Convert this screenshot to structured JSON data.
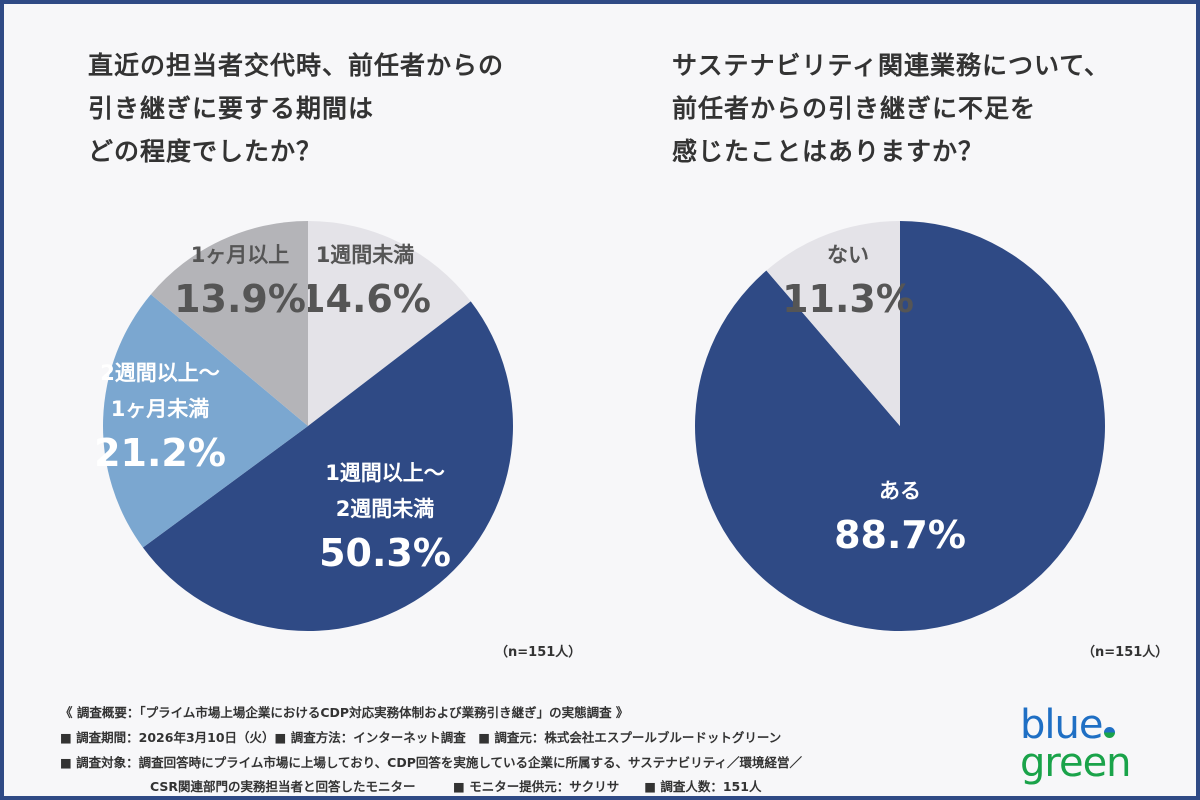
{
  "colors": {
    "navy": "#2f4a85",
    "lightblue": "#7ba7d0",
    "gray": "#b4b4b8",
    "lightgray": "#e4e3e8",
    "frame": "#2f4a85"
  },
  "chart_data": [
    {
      "type": "pie",
      "title": [
        "直近の担当者交代時、前任者からの",
        "引き継ぎに要する期間は",
        "どの程度でしたか？"
      ],
      "note": "（n=151人）",
      "slices": [
        {
          "label": [
            "1週間未満"
          ],
          "value": 14.6,
          "display": "14.6%",
          "color": "#e4e3e8",
          "text": "#555555"
        },
        {
          "label": [
            "1週間以上～",
            "2週間未満"
          ],
          "value": 50.3,
          "display": "50.3%",
          "color": "#2f4a85",
          "text": "#ffffff"
        },
        {
          "label": [
            "2週間以上～",
            "1ヶ月未満"
          ],
          "value": 21.2,
          "display": "21.2%",
          "color": "#7ba7d0",
          "text": "#ffffff"
        },
        {
          "label": [
            "1ヶ月以上"
          ],
          "value": 13.9,
          "display": "13.9%",
          "color": "#b4b4b8",
          "text": "#555555"
        }
      ]
    },
    {
      "type": "pie",
      "title": [
        "サステナビリティ関連業務について、",
        "前任者からの引き継ぎに不足を",
        "感じたことはありますか？"
      ],
      "note": "（n=151人）",
      "slices": [
        {
          "label": [
            "ある"
          ],
          "value": 88.7,
          "display": "88.7%",
          "color": "#2f4a85",
          "text": "#ffffff"
        },
        {
          "label": [
            "ない"
          ],
          "value": 11.3,
          "display": "11.3%",
          "color": "#e4e3e8",
          "text": "#555555"
        }
      ]
    }
  ],
  "footer": {
    "line1": "《 調査概要：「プライム市場上場企業におけるCDP対応実務体制および業務引き継ぎ」の実態調査 》",
    "line2": "■ 調査期間：2026年3月10日（火）■ 調査方法：インターネット調査　■ 調査元：株式会社エスプールブルードットグリーン",
    "line3": "■ 調査対象：調査回答時にプライム市場に上場しており、CDP回答を実施している企業に所属する、サステナビリティ／環境経営／",
    "line4": "CSR関連部門の実務担当者と回答したモニター　　　■ モニター提供元：サクリサ　　■ 調査人数：151人"
  },
  "logo": {
    "top": "blue",
    "bottom": "green"
  }
}
